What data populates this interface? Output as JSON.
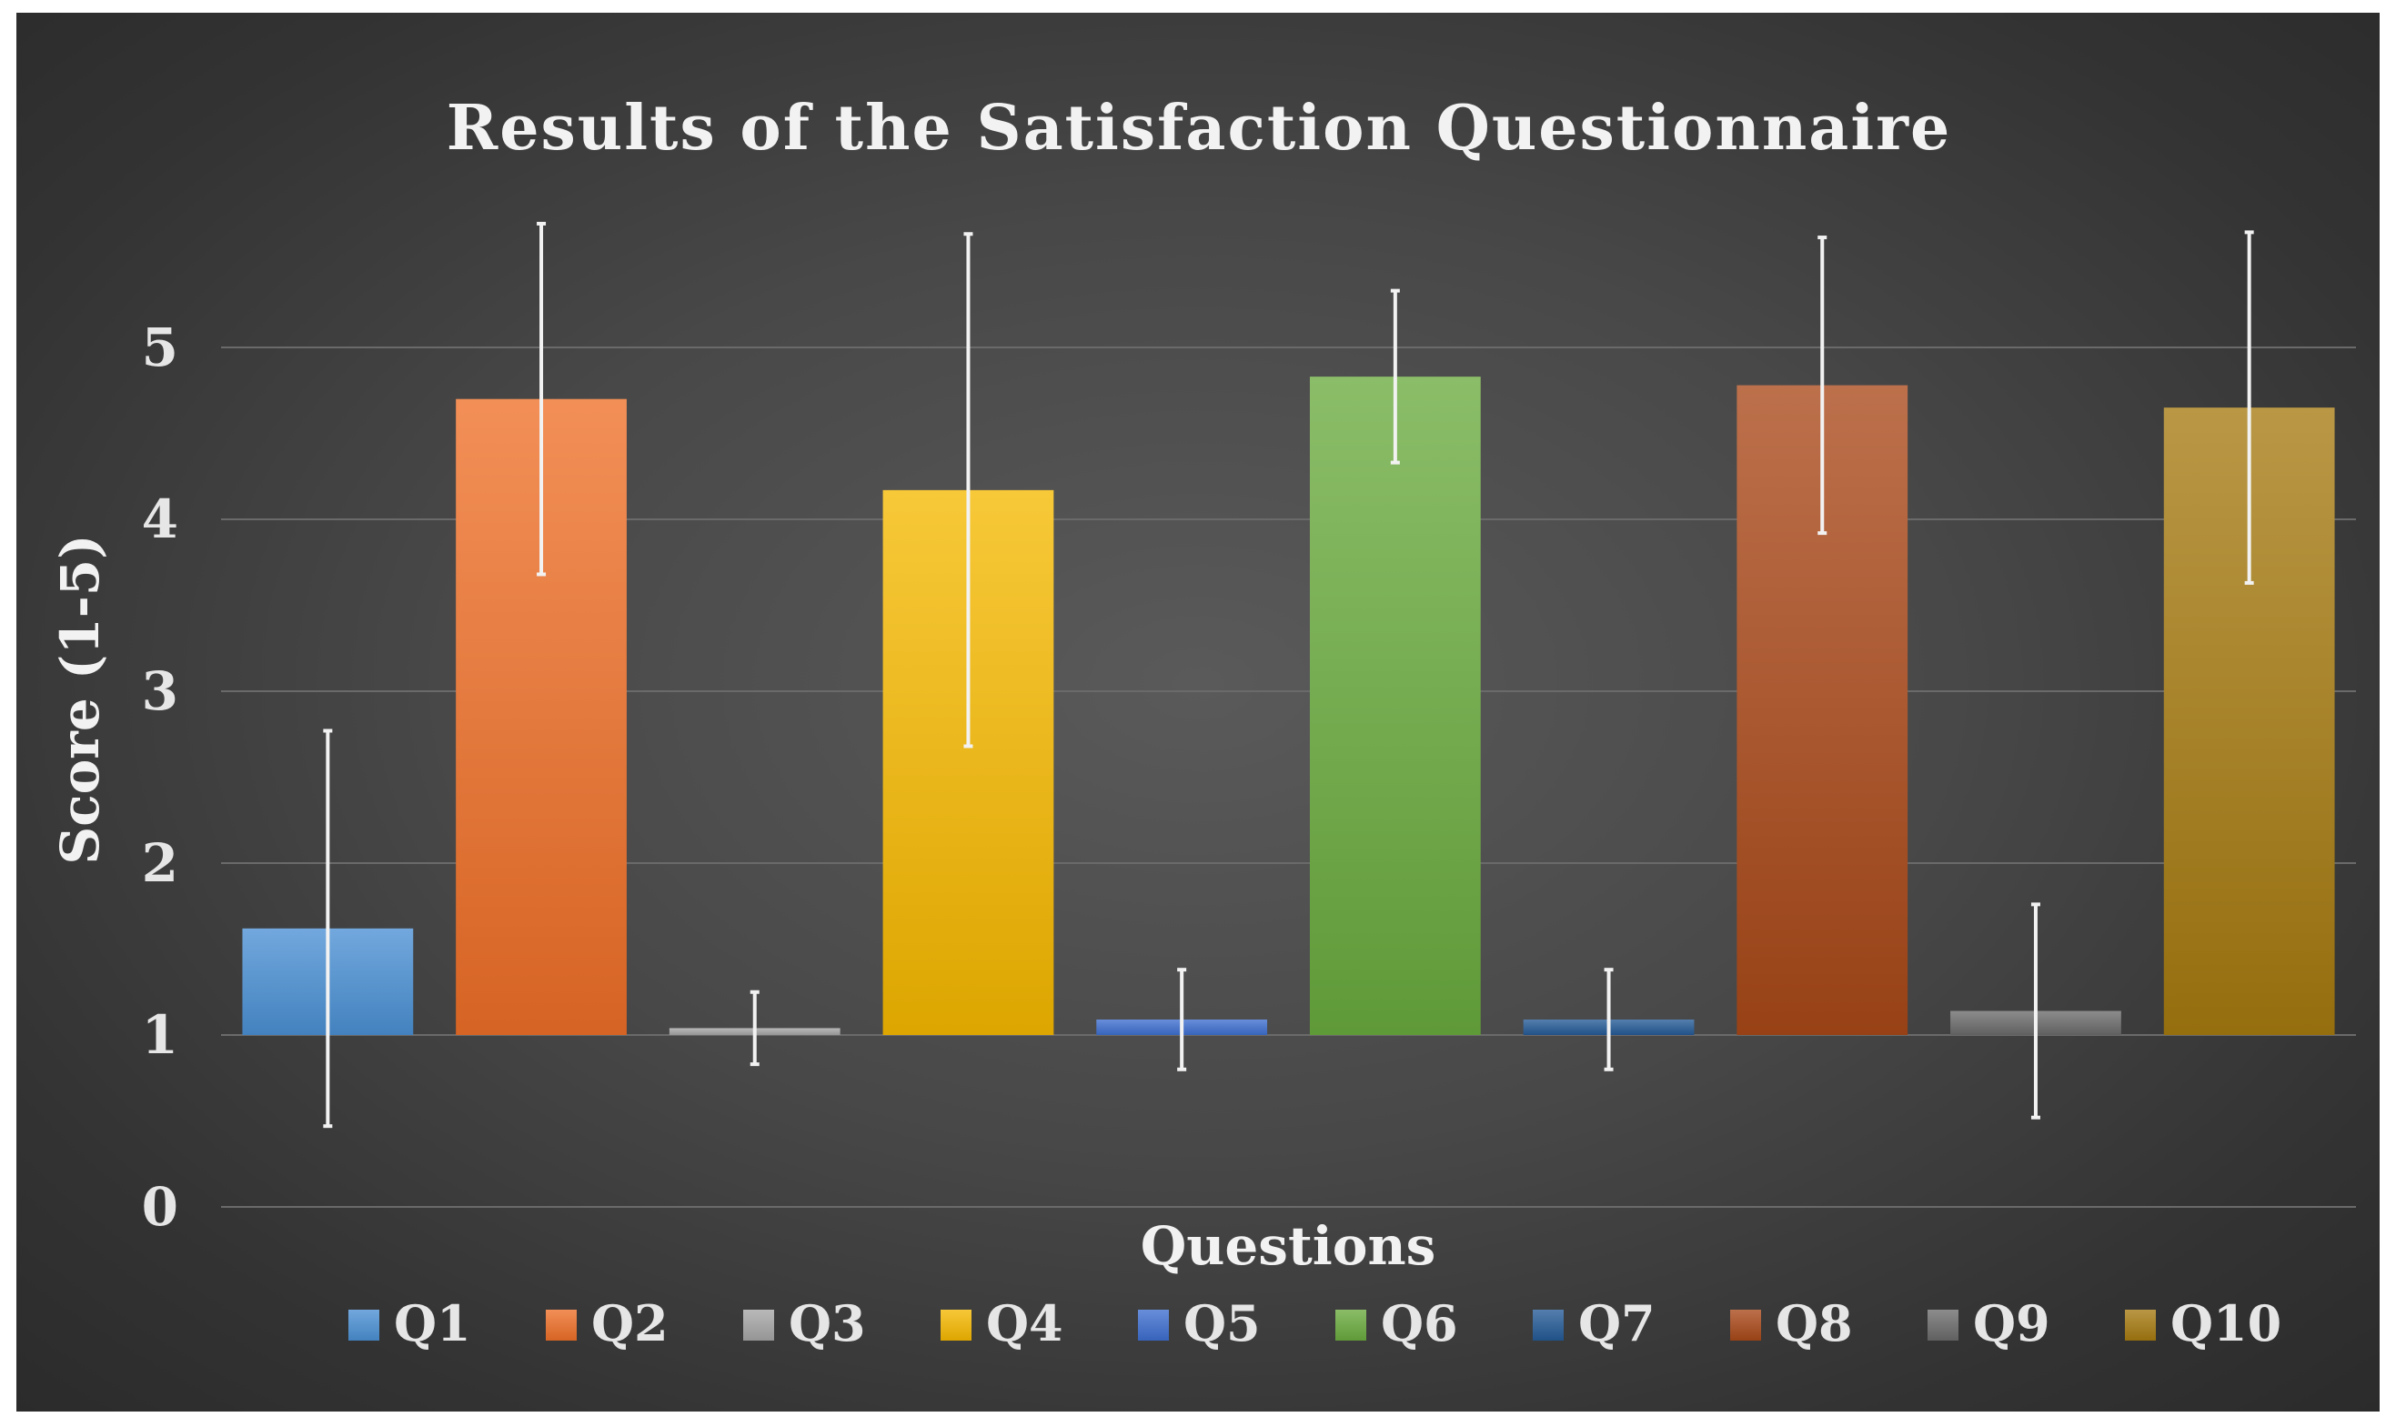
{
  "chart_data": {
    "type": "bar",
    "title": "Results of the Satisfaction Questionnaire",
    "xlabel": "Questions",
    "ylabel": "Score (1-5)",
    "ylim": [
      0,
      5.5
    ],
    "yticks": [
      0,
      1,
      2,
      3,
      4,
      5
    ],
    "baseline": 1,
    "grid": true,
    "legend_position": "bottom",
    "categories": [
      "Q1",
      "Q2",
      "Q3",
      "Q4",
      "Q5",
      "Q6",
      "Q7",
      "Q8",
      "Q9",
      "Q10"
    ],
    "values": [
      1.62,
      4.7,
      1.04,
      4.17,
      1.09,
      4.83,
      1.09,
      4.78,
      1.14,
      4.65
    ],
    "error": [
      1.15,
      1.02,
      0.21,
      1.49,
      0.29,
      0.5,
      0.29,
      0.86,
      0.62,
      1.02
    ],
    "colors": [
      "#4a90d4",
      "#ee6f28",
      "#a5a5a5",
      "#f5b800",
      "#3d6ed0",
      "#6aab3e",
      "#245a96",
      "#a94818",
      "#6b6b6b",
      "#a57a10"
    ]
  }
}
